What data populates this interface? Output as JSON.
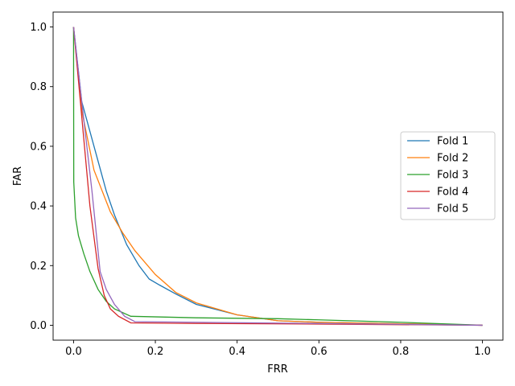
{
  "chart_data": {
    "type": "line",
    "title": "",
    "xlabel": "FRR",
    "ylabel": "FAR",
    "xlim": [
      -0.05,
      1.05
    ],
    "ylim": [
      -0.05,
      1.05
    ],
    "xticks": [
      "0.0",
      "0.2",
      "0.4",
      "0.6",
      "0.8",
      "1.0"
    ],
    "yticks": [
      "0.0",
      "0.2",
      "0.4",
      "0.6",
      "0.8",
      "1.0"
    ],
    "grid": false,
    "legend": "center-right",
    "series": [
      {
        "name": "Fold 1",
        "color": "#1f77b4",
        "points": [
          [
            0,
            1.0
          ],
          [
            0.02,
            0.75
          ],
          [
            0.05,
            0.6
          ],
          [
            0.08,
            0.45
          ],
          [
            0.1,
            0.37
          ],
          [
            0.13,
            0.27
          ],
          [
            0.16,
            0.2
          ],
          [
            0.185,
            0.155
          ],
          [
            0.21,
            0.135
          ],
          [
            0.25,
            0.105
          ],
          [
            0.3,
            0.07
          ],
          [
            0.4,
            0.035
          ],
          [
            0.5,
            0.015
          ],
          [
            0.6,
            0.01
          ],
          [
            0.8,
            0.005
          ],
          [
            1.0,
            0.0
          ]
        ]
      },
      {
        "name": "Fold 2",
        "color": "#ff7f0e",
        "points": [
          [
            0,
            1.0
          ],
          [
            0.02,
            0.72
          ],
          [
            0.05,
            0.52
          ],
          [
            0.09,
            0.38
          ],
          [
            0.12,
            0.31
          ],
          [
            0.15,
            0.25
          ],
          [
            0.2,
            0.17
          ],
          [
            0.25,
            0.11
          ],
          [
            0.3,
            0.075
          ],
          [
            0.4,
            0.035
          ],
          [
            0.5,
            0.015
          ],
          [
            0.6,
            0.01
          ],
          [
            0.8,
            0.005
          ],
          [
            1.0,
            0.0
          ]
        ]
      },
      {
        "name": "Fold 3",
        "color": "#2ca02c",
        "points": [
          [
            0,
            1.0
          ],
          [
            0.0005,
            0.48
          ],
          [
            0.005,
            0.36
          ],
          [
            0.012,
            0.3
          ],
          [
            0.025,
            0.24
          ],
          [
            0.04,
            0.18
          ],
          [
            0.06,
            0.12
          ],
          [
            0.08,
            0.08
          ],
          [
            0.1,
            0.055
          ],
          [
            0.14,
            0.03
          ],
          [
            0.3,
            0.025
          ],
          [
            0.5,
            0.022
          ],
          [
            0.6,
            0.018
          ],
          [
            0.8,
            0.01
          ],
          [
            1.0,
            0.0
          ]
        ]
      },
      {
        "name": "Fold 4",
        "color": "#d62728",
        "points": [
          [
            0,
            1.0
          ],
          [
            0.02,
            0.7
          ],
          [
            0.04,
            0.4
          ],
          [
            0.06,
            0.19
          ],
          [
            0.075,
            0.1
          ],
          [
            0.09,
            0.055
          ],
          [
            0.11,
            0.03
          ],
          [
            0.14,
            0.008
          ],
          [
            0.3,
            0.006
          ],
          [
            0.6,
            0.004
          ],
          [
            1.0,
            0.0
          ]
        ]
      },
      {
        "name": "Fold 5",
        "color": "#9467bd",
        "points": [
          [
            0,
            1.0
          ],
          [
            0.02,
            0.75
          ],
          [
            0.045,
            0.45
          ],
          [
            0.065,
            0.18
          ],
          [
            0.08,
            0.12
          ],
          [
            0.1,
            0.07
          ],
          [
            0.125,
            0.03
          ],
          [
            0.15,
            0.012
          ],
          [
            0.3,
            0.01
          ],
          [
            0.6,
            0.006
          ],
          [
            1.0,
            0.0
          ]
        ]
      }
    ]
  }
}
